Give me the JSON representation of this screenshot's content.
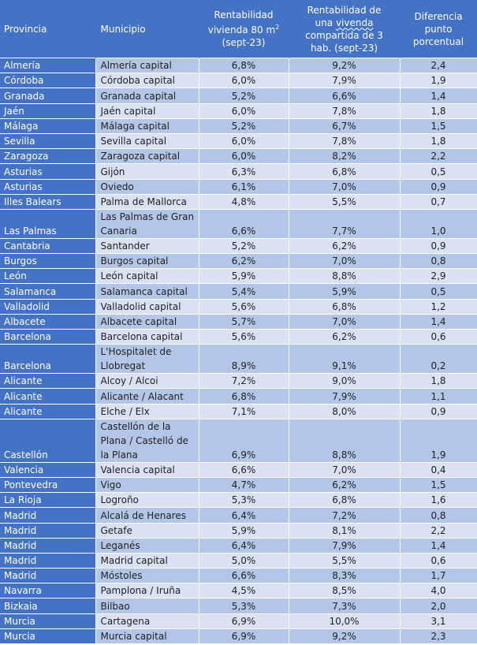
{
  "colors": {
    "header_bg": "#4472C4",
    "province_bg": "#4472C4",
    "row_dark": "#B4C6E7",
    "row_light": "#D9E1F2",
    "header_text": "#FFFFFF"
  },
  "table": {
    "headers": {
      "provincia": "Provincia",
      "municipio": "Municipio",
      "rent80_line1": "Rentabilidad",
      "rent80_line2": "vivienda 80 m",
      "rent80_sup": "2",
      "rent80_line3": "(sept-23)",
      "rentshared_line1": "Rentabilidad de",
      "rentshared_line2a": "una ",
      "rentshared_line2b": "vivenda",
      "rentshared_line3": "compartida de 3",
      "rentshared_line4": "hab. (sept-23)",
      "diff_line1": "Diferencia",
      "diff_line2": "punto",
      "diff_line3": "porcentual"
    },
    "rows": [
      {
        "provincia": "Almería",
        "municipio": "Almería capital",
        "rent80": "6,8%",
        "rentshared": "9,2%",
        "diff": "2,4"
      },
      {
        "provincia": "Córdoba",
        "municipio": "Córdoba capital",
        "rent80": "6,0%",
        "rentshared": "7,9%",
        "diff": "1,9"
      },
      {
        "provincia": "Granada",
        "municipio": "Granada capital",
        "rent80": "5,2%",
        "rentshared": "6,6%",
        "diff": "1,4"
      },
      {
        "provincia": "Jaén",
        "municipio": "Jaén capital",
        "rent80": "6,0%",
        "rentshared": "7,8%",
        "diff": "1,8"
      },
      {
        "provincia": "Málaga",
        "municipio": "Málaga capital",
        "rent80": "5,2%",
        "rentshared": "6,7%",
        "diff": "1,5"
      },
      {
        "provincia": "Sevilla",
        "municipio": "Sevilla capital",
        "rent80": "6,0%",
        "rentshared": "7,8%",
        "diff": "1,8"
      },
      {
        "provincia": "Zaragoza",
        "municipio": "Zaragoza capital",
        "rent80": "6,0%",
        "rentshared": "8,2%",
        "diff": "2,2"
      },
      {
        "provincia": "Asturias",
        "municipio": "Gijón",
        "rent80": "6,3%",
        "rentshared": "6,8%",
        "diff": "0,5"
      },
      {
        "provincia": "Asturias",
        "municipio": "Oviedo",
        "rent80": "6,1%",
        "rentshared": "7,0%",
        "diff": "0,9"
      },
      {
        "provincia": "Illes Balears",
        "municipio": "Palma de Mallorca",
        "rent80": "4,8%",
        "rentshared": "5,5%",
        "diff": "0,7"
      },
      {
        "provincia": "Las Palmas",
        "municipio": "Las Palmas de Gran Canaria",
        "rent80": "6,6%",
        "rentshared": "7,7%",
        "diff": "1,0"
      },
      {
        "provincia": "Cantabria",
        "municipio": "Santander",
        "rent80": "5,2%",
        "rentshared": "6,2%",
        "diff": "0,9"
      },
      {
        "provincia": "Burgos",
        "municipio": "Burgos capital",
        "rent80": "6,2%",
        "rentshared": "7,0%",
        "diff": "0,8"
      },
      {
        "provincia": "León",
        "municipio": "León capital",
        "rent80": "5,9%",
        "rentshared": "8,8%",
        "diff": "2,9"
      },
      {
        "provincia": "Salamanca",
        "municipio": "Salamanca capital",
        "rent80": "5,4%",
        "rentshared": "5,9%",
        "diff": "0,5"
      },
      {
        "provincia": "Valladolid",
        "municipio": "Valladolid capital",
        "rent80": "5,6%",
        "rentshared": "6,8%",
        "diff": "1,2"
      },
      {
        "provincia": "Albacete",
        "municipio": "Albacete capital",
        "rent80": "5,7%",
        "rentshared": "7,0%",
        "diff": "1,4"
      },
      {
        "provincia": "Barcelona",
        "municipio": "Barcelona capital",
        "rent80": "5,6%",
        "rentshared": "6,2%",
        "diff": "0,6"
      },
      {
        "provincia": "Barcelona",
        "municipio": "L'Hospitalet de Llobregat",
        "rent80": "8,9%",
        "rentshared": "9,1%",
        "diff": "0,2"
      },
      {
        "provincia": "Alicante",
        "municipio": "Alcoy / Alcoi",
        "rent80": "7,2%",
        "rentshared": "9,0%",
        "diff": "1,8"
      },
      {
        "provincia": "Alicante",
        "municipio": "Alicante / Alacant",
        "rent80": "6,8%",
        "rentshared": "7,9%",
        "diff": "1,1"
      },
      {
        "provincia": "Alicante",
        "municipio": "Elche / Elx",
        "rent80": "7,1%",
        "rentshared": "8,0%",
        "diff": "0,9"
      },
      {
        "provincia": "Castellón",
        "municipio": "Castellón de la Plana / Castelló de la Plana",
        "rent80": "6,9%",
        "rentshared": "8,8%",
        "diff": "1,9"
      },
      {
        "provincia": "Valencia",
        "municipio": "Valencia capital",
        "rent80": "6,6%",
        "rentshared": "7,0%",
        "diff": "0,4"
      },
      {
        "provincia": "Pontevedra",
        "municipio": "Vigo",
        "rent80": "4,7%",
        "rentshared": "6,2%",
        "diff": "1,5"
      },
      {
        "provincia": "La Rioja",
        "municipio": "Logroño",
        "rent80": "5,3%",
        "rentshared": "6,8%",
        "diff": "1,6"
      },
      {
        "provincia": "Madrid",
        "municipio": "Alcalá de Henares",
        "rent80": "6,4%",
        "rentshared": "7,2%",
        "diff": "0,8"
      },
      {
        "provincia": "Madrid",
        "municipio": "Getafe",
        "rent80": "5,9%",
        "rentshared": "8,1%",
        "diff": "2,2"
      },
      {
        "provincia": "Madrid",
        "municipio": "Leganés",
        "rent80": "6,4%",
        "rentshared": "7,9%",
        "diff": "1,4"
      },
      {
        "provincia": "Madrid",
        "municipio": "Madrid capital",
        "rent80": "5,0%",
        "rentshared": "5,5%",
        "diff": "0,6"
      },
      {
        "provincia": "Madrid",
        "municipio": "Móstoles",
        "rent80": "6,6%",
        "rentshared": "8,3%",
        "diff": "1,7"
      },
      {
        "provincia": "Navarra",
        "municipio": "Pamplona / Iruña",
        "rent80": "4,5%",
        "rentshared": "8,5%",
        "diff": "4,0"
      },
      {
        "provincia": "Bizkaia",
        "municipio": "Bilbao",
        "rent80": "5,3%",
        "rentshared": "7,3%",
        "diff": "2,0"
      },
      {
        "provincia": "Murcia",
        "municipio": "Cartagena",
        "rent80": "6,9%",
        "rentshared": "10,0%",
        "diff": "3,1"
      },
      {
        "provincia": "Murcia",
        "municipio": "Murcia capital",
        "rent80": "6,9%",
        "rentshared": "9,2%",
        "diff": "2,3"
      }
    ]
  }
}
